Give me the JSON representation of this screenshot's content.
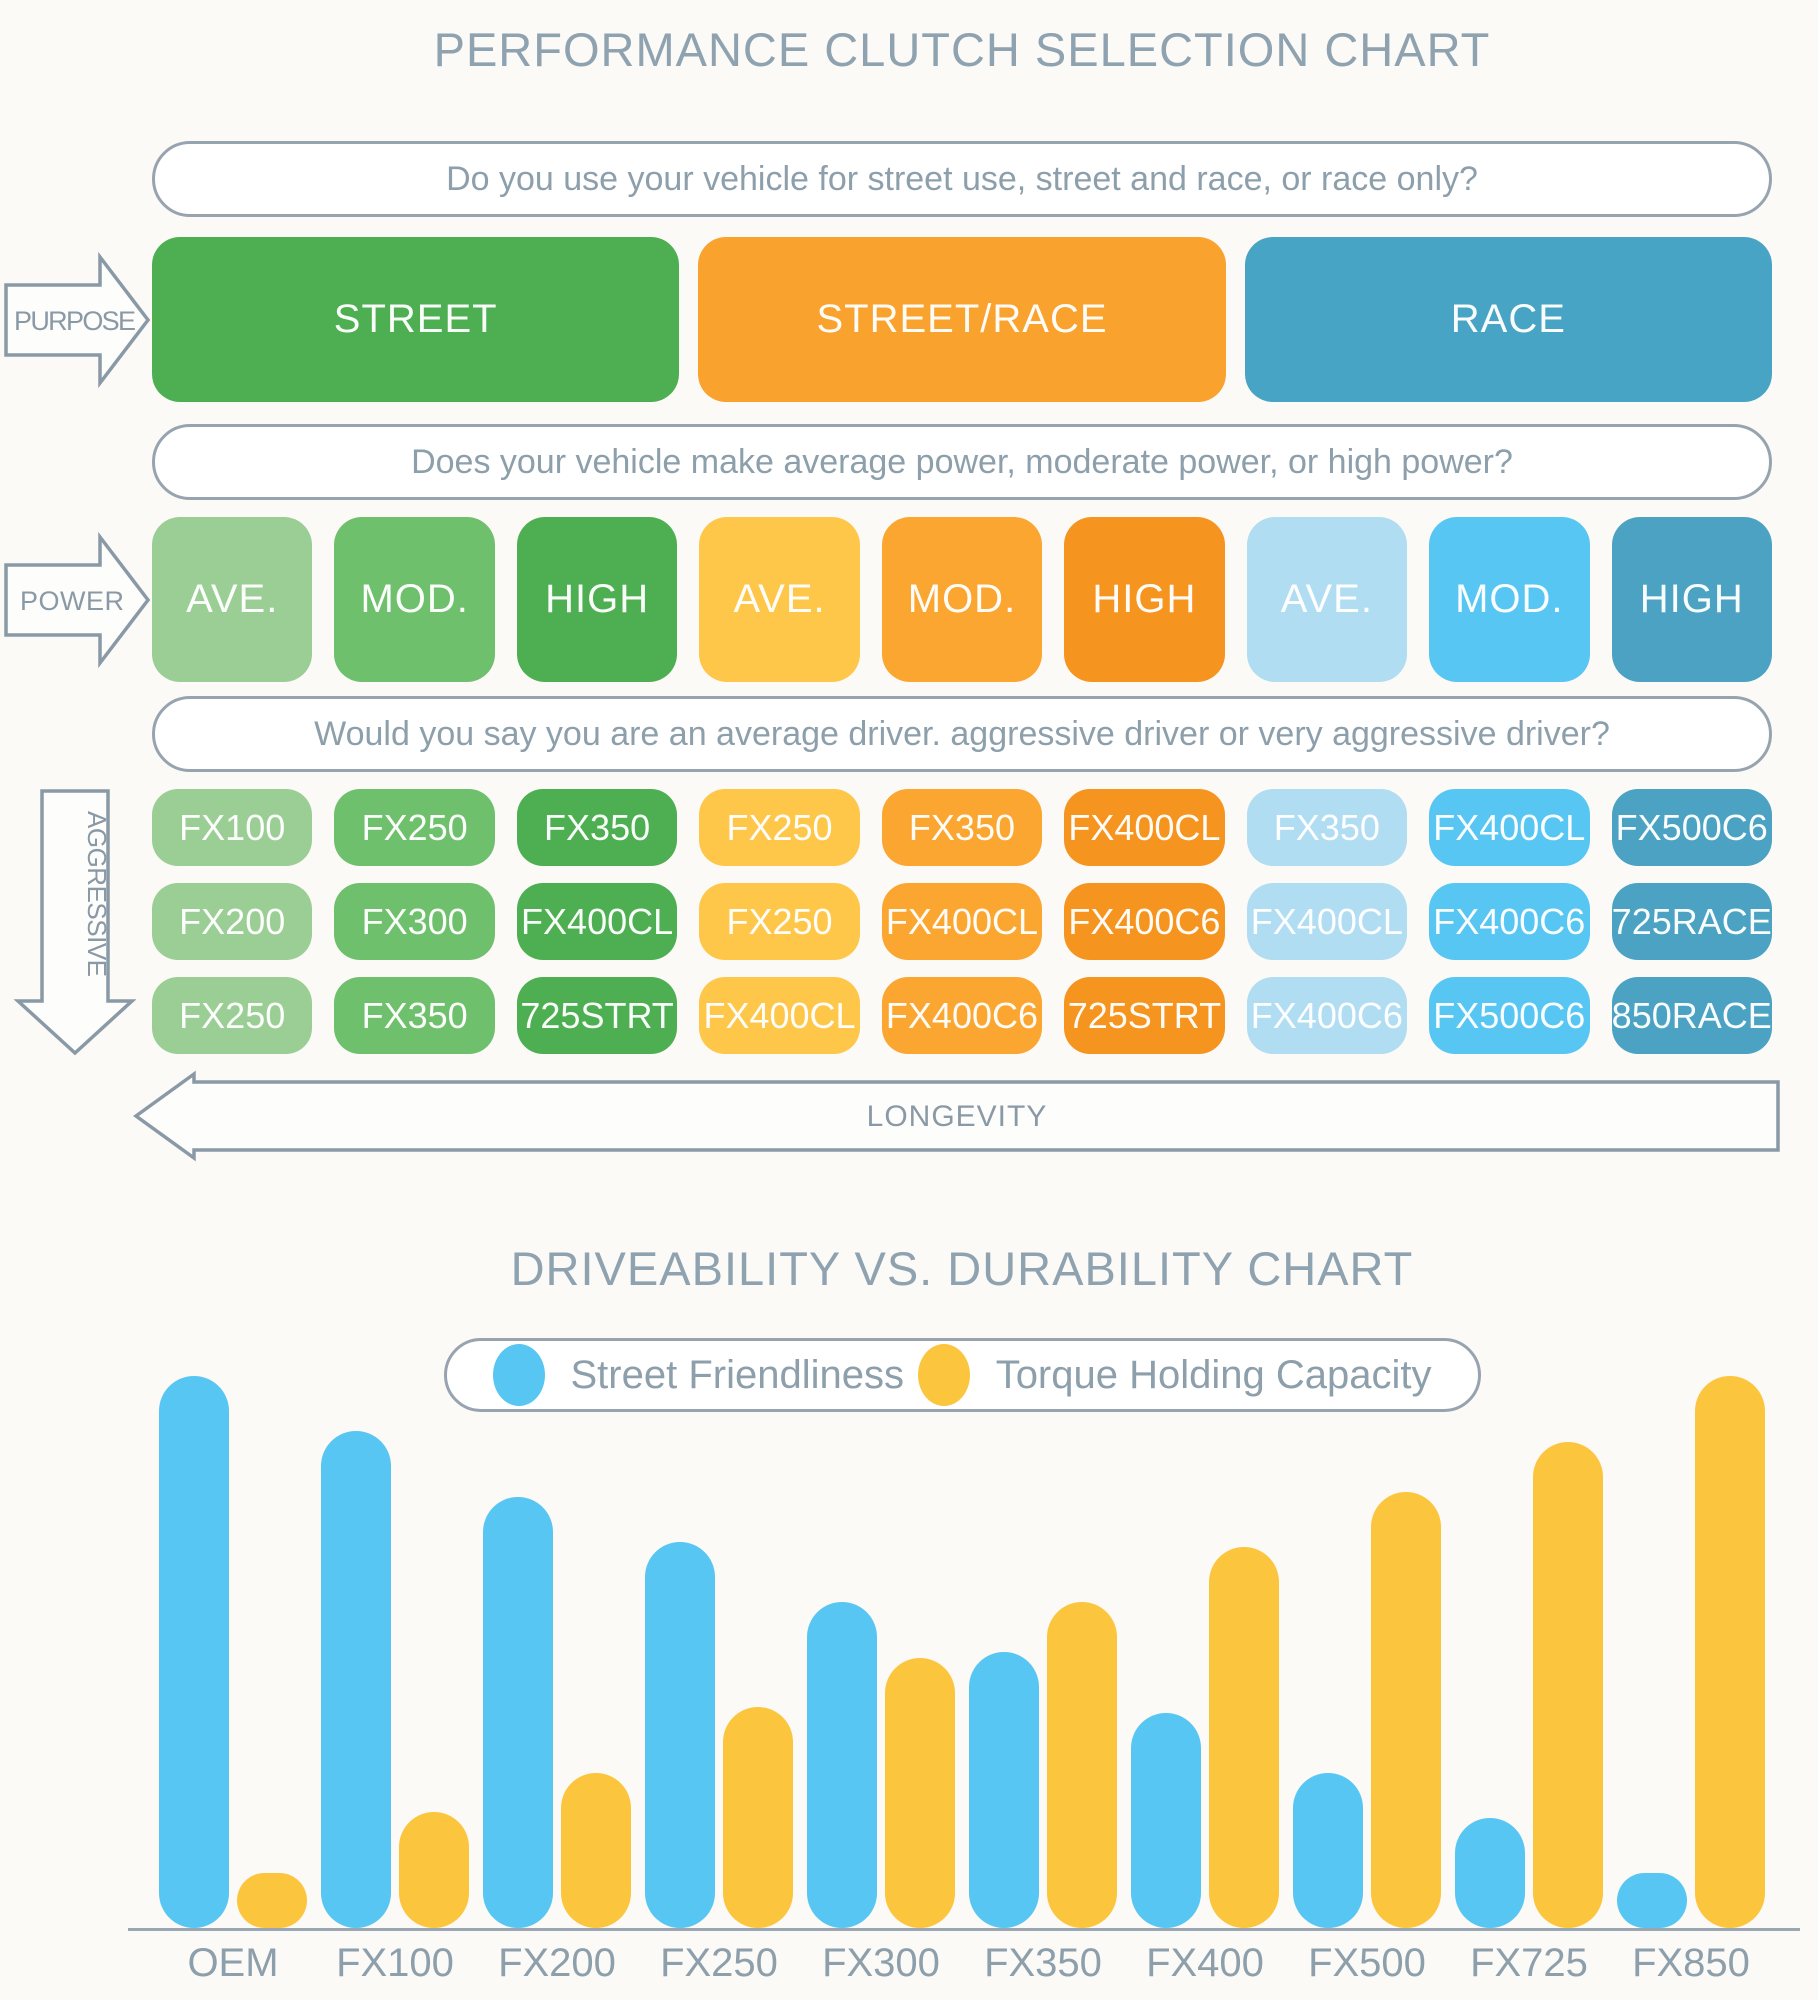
{
  "title": "PERFORMANCE CLUTCH SELECTION CHART",
  "questions": {
    "purpose": "Do you use your vehicle for street use, street and race, or race only?",
    "power": "Does your vehicle make average power, moderate power, or high power?",
    "driver": "Would you say you are an average driver. aggressive driver or very aggressive driver?"
  },
  "arrows": {
    "purpose": "PURPOSE",
    "power": "POWER",
    "aggressive": "AGGRESSIVE",
    "longevity": "LONGEVITY"
  },
  "purpose_options": [
    {
      "label": "STREET",
      "color": "#4daf51"
    },
    {
      "label": "STREET/RACE",
      "color": "#f9a22e"
    },
    {
      "label": "RACE",
      "color": "#48a4c4"
    }
  ],
  "power_options": [
    {
      "label": "AVE.",
      "color": "#9bce95"
    },
    {
      "label": "MOD.",
      "color": "#6fc06c"
    },
    {
      "label": "HIGH",
      "color": "#4daf51"
    },
    {
      "label": "AVE.",
      "color": "#fec74a"
    },
    {
      "label": "MOD.",
      "color": "#faa630"
    },
    {
      "label": "HIGH",
      "color": "#f69420"
    },
    {
      "label": "AVE.",
      "color": "#b0ddf2"
    },
    {
      "label": "MOD.",
      "color": "#58c6f2"
    },
    {
      "label": "HIGH",
      "color": "#4ba2c2"
    }
  ],
  "grid_rows": [
    [
      {
        "label": "FX100",
        "color": "#9bce95"
      },
      {
        "label": "FX250",
        "color": "#6fc06c"
      },
      {
        "label": "FX350",
        "color": "#4daf51"
      },
      {
        "label": "FX250",
        "color": "#fec74a"
      },
      {
        "label": "FX350",
        "color": "#faa630"
      },
      {
        "label": "FX400CL",
        "color": "#f69420"
      },
      {
        "label": "FX350",
        "color": "#b0ddf2"
      },
      {
        "label": "FX400CL",
        "color": "#58c6f2"
      },
      {
        "label": "FX500C6",
        "color": "#4ba2c2"
      }
    ],
    [
      {
        "label": "FX200",
        "color": "#9bce95"
      },
      {
        "label": "FX300",
        "color": "#6fc06c"
      },
      {
        "label": "FX400CL",
        "color": "#4daf51"
      },
      {
        "label": "FX250",
        "color": "#fec74a"
      },
      {
        "label": "FX400CL",
        "color": "#faa630"
      },
      {
        "label": "FX400C6",
        "color": "#f69420"
      },
      {
        "label": "FX400CL",
        "color": "#b0ddf2"
      },
      {
        "label": "FX400C6",
        "color": "#58c6f2"
      },
      {
        "label": "725RACE",
        "color": "#4ba2c2"
      }
    ],
    [
      {
        "label": "FX250",
        "color": "#9bce95"
      },
      {
        "label": "FX350",
        "color": "#6fc06c"
      },
      {
        "label": "725STRT",
        "color": "#4daf51"
      },
      {
        "label": "FX400CL",
        "color": "#fec74a"
      },
      {
        "label": "FX400C6",
        "color": "#faa630"
      },
      {
        "label": "725STRT",
        "color": "#f69420"
      },
      {
        "label": "FX400C6",
        "color": "#b0ddf2"
      },
      {
        "label": "FX500C6",
        "color": "#58c6f2"
      },
      {
        "label": "850RACE",
        "color": "#4ba2c2"
      }
    ]
  ],
  "chart_title": "DRIVEABILITY VS. DURABILITY CHART",
  "chart_data": {
    "type": "bar",
    "title": "DRIVEABILITY VS. DURABILITY CHART",
    "categories": [
      "OEM",
      "FX100",
      "FX200",
      "FX250",
      "FX300",
      "FX350",
      "FX400",
      "FX500",
      "FX725",
      "FX850"
    ],
    "series": [
      {
        "name": "Street Friendliness",
        "color": "#58c6f2",
        "values": [
          100,
          90,
          78,
          70,
          59,
          50,
          39,
          28,
          20,
          10
        ]
      },
      {
        "name": "Torque Holding Capacity",
        "color": "#fcc53e",
        "values": [
          10,
          21,
          28,
          40,
          49,
          59,
          69,
          79,
          88,
          100
        ]
      }
    ],
    "xlabel": "",
    "ylabel": "",
    "ylim": [
      0,
      100
    ],
    "grid": false,
    "legend_position": "top"
  }
}
